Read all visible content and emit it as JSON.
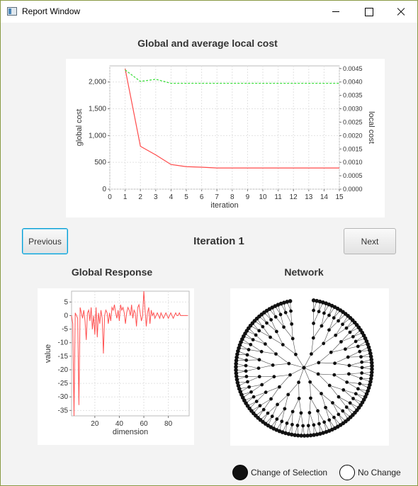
{
  "window": {
    "title": "Report Window"
  },
  "cost_chart": {
    "title": "Global and average local cost",
    "chart_data": {
      "type": "line",
      "xlabel": "iteration",
      "ylabel": "global cost",
      "y2label": "local cost",
      "xlim": [
        0,
        15
      ],
      "ylim": [
        0,
        2300
      ],
      "y2lim": [
        0,
        0.0046
      ],
      "x_ticks": [
        "0",
        "1",
        "2",
        "3",
        "4",
        "5",
        "6",
        "7",
        "8",
        "9",
        "10",
        "11",
        "12",
        "13",
        "14",
        "15"
      ],
      "y_ticks": [
        "0",
        "500",
        "1,000",
        "1,500",
        "2,000"
      ],
      "y2_ticks": [
        "0.0000",
        "0.0005",
        "0.0010",
        "0.0015",
        "0.0020",
        "0.0025",
        "0.0030",
        "0.0035",
        "0.0040",
        "0.0045"
      ],
      "grid": true,
      "series": [
        {
          "axis": "left",
          "color": "#ff4a4a",
          "style": "solid",
          "x": [
            1,
            2,
            3,
            4,
            5,
            6,
            7,
            8,
            9,
            10,
            11,
            12,
            13,
            14,
            15
          ],
          "values": [
            2250,
            800,
            640,
            460,
            420,
            410,
            395,
            395,
            395,
            395,
            395,
            395,
            395,
            395,
            395
          ]
        },
        {
          "axis": "right",
          "color": "#33dd33",
          "style": "dashed",
          "x": [
            1,
            2,
            3,
            4,
            5,
            6,
            7,
            8,
            9,
            10,
            11,
            12,
            13,
            14,
            15
          ],
          "values": [
            0.00445,
            0.00402,
            0.0041,
            0.00395,
            0.00395,
            0.00395,
            0.00395,
            0.00395,
            0.00395,
            0.00395,
            0.00395,
            0.00395,
            0.00395,
            0.00395,
            0.00395
          ]
        }
      ]
    }
  },
  "nav": {
    "previous_label": "Previous",
    "next_label": "Next",
    "iteration_label": "Iteration 1"
  },
  "response_chart": {
    "title": "Global Response",
    "chart_data": {
      "type": "line",
      "xlabel": "dimension",
      "ylabel": "value",
      "xlim": [
        1,
        97
      ],
      "ylim": [
        -37,
        9
      ],
      "x_ticks": [
        "20",
        "40",
        "60",
        "80"
      ],
      "x_tick_values": [
        20,
        40,
        60,
        80
      ],
      "y_ticks": [
        "5",
        "0",
        "-5",
        "-10",
        "-15",
        "-20",
        "-25",
        "-30",
        "-35"
      ],
      "y_tick_values": [
        5,
        0,
        -5,
        -10,
        -15,
        -20,
        -25,
        -30,
        -35
      ],
      "grid": true,
      "color": "#ff5050",
      "values": [
        0,
        -3,
        -37,
        1,
        0,
        -1,
        -33,
        3,
        1,
        -1,
        2,
        -2,
        -9,
        1,
        2,
        -2,
        3,
        -5,
        0,
        -7,
        3,
        -8,
        1,
        -3,
        2,
        -1,
        -14,
        0,
        2,
        1,
        -3,
        1,
        -2,
        3,
        2,
        4,
        1,
        -1,
        2,
        -2,
        4,
        2,
        3,
        1,
        -3,
        1,
        3,
        2,
        0,
        4,
        -1,
        2,
        1,
        -4,
        3,
        4,
        1,
        -2,
        0,
        9,
        2,
        -4,
        1,
        3,
        -3,
        2,
        0,
        1,
        -1,
        0,
        1,
        0,
        -1,
        1,
        0,
        -1,
        0,
        1,
        0,
        -1,
        0,
        1,
        0,
        -1,
        0,
        1,
        0,
        0,
        1,
        0,
        0,
        0,
        0,
        0,
        0,
        0
      ]
    }
  },
  "network": {
    "title": "Network",
    "leaf_count": 128,
    "depth": 5
  },
  "legend": {
    "changed_label": "Change of Selection",
    "unchanged_label": "No Change"
  }
}
